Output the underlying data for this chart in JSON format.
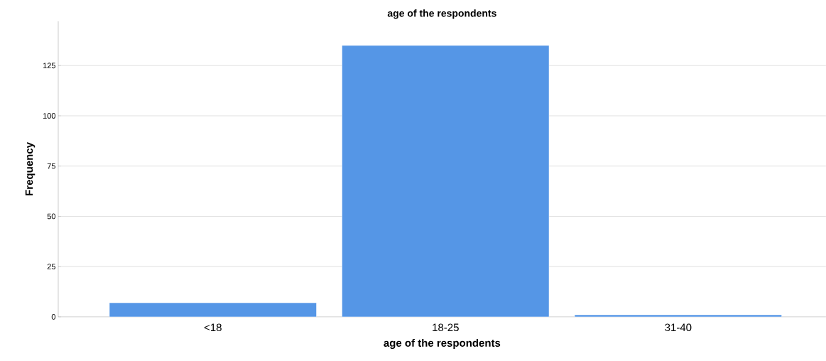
{
  "chart_data": {
    "type": "bar",
    "title": "age of the respondents",
    "xlabel": "age of the respondents",
    "ylabel": "Frequency",
    "categories": [
      "<18",
      "18-25",
      "31-40"
    ],
    "values": [
      7,
      135,
      1
    ],
    "color": "#5596e6",
    "ylim": [
      0,
      147
    ],
    "yticks": [
      0,
      25,
      50,
      75,
      100,
      125
    ],
    "grid": "y"
  }
}
